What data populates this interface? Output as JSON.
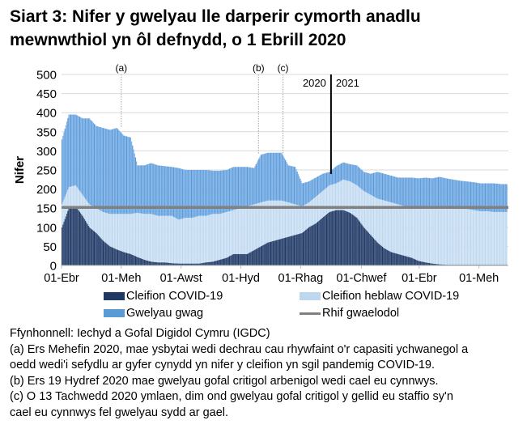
{
  "title": "Siart 3: Nifer y gwelyau lle darperir cymorth anadlu mewnwthiol yn ôl defnydd, o 1 Ebrill 2020",
  "chart_data": {
    "type": "bar",
    "stacked": true,
    "ylabel": "Nifer",
    "ylim": [
      0,
      500
    ],
    "yticks": [
      0,
      50,
      100,
      150,
      200,
      250,
      300,
      350,
      400,
      450,
      500
    ],
    "grid": true,
    "legend_placement": "bottom",
    "x_start": "2020-04-01",
    "x_step_days": 7,
    "xticks": [
      {
        "date": "2020-04-01",
        "label": "01-Ebr"
      },
      {
        "date": "2020-06-01",
        "label": "01-Meh"
      },
      {
        "date": "2020-08-01",
        "label": "01-Awst"
      },
      {
        "date": "2020-10-01",
        "label": "01-Hyd"
      },
      {
        "date": "2020-12-01",
        "label": "01-Rhag"
      },
      {
        "date": "2021-02-01",
        "label": "01-Chwef"
      },
      {
        "date": "2021-04-01",
        "label": "01-Ebr"
      },
      {
        "date": "2021-06-01",
        "label": "01-Meh"
      }
    ],
    "series": [
      {
        "name": "Cleifion COVID-19",
        "color": "#1f3864",
        "values": [
          100,
          150,
          155,
          130,
          100,
          85,
          65,
          50,
          42,
          35,
          30,
          22,
          15,
          10,
          8,
          8,
          6,
          5,
          5,
          5,
          5,
          8,
          10,
          15,
          20,
          30,
          30,
          30,
          40,
          50,
          60,
          65,
          70,
          75,
          80,
          85,
          100,
          110,
          125,
          140,
          145,
          145,
          138,
          125,
          100,
          80,
          60,
          45,
          35,
          30,
          25,
          20,
          12,
          8,
          5,
          3,
          2,
          2,
          2,
          2,
          2,
          2,
          2,
          2,
          2
        ]
      },
      {
        "name": "Cleifion heblaw COVID-19",
        "color": "#bdd7ee",
        "values": [
          60,
          55,
          55,
          55,
          60,
          65,
          75,
          85,
          93,
          100,
          105,
          116,
          120,
          125,
          122,
          122,
          124,
          115,
          120,
          120,
          125,
          122,
          125,
          120,
          120,
          115,
          120,
          125,
          120,
          115,
          110,
          105,
          100,
          90,
          80,
          70,
          65,
          70,
          70,
          70,
          70,
          80,
          82,
          85,
          95,
          105,
          115,
          125,
          130,
          130,
          130,
          130,
          138,
          142,
          145,
          147,
          148,
          146,
          146,
          146,
          143,
          140,
          140,
          138,
          138
        ]
      },
      {
        "name": "Gwelyau gwag",
        "color": "#5b9bd5",
        "values": [
          170,
          190,
          185,
          200,
          225,
          215,
          220,
          220,
          225,
          205,
          200,
          124,
          127,
          133,
          132,
          130,
          128,
          135,
          125,
          125,
          120,
          120,
          113,
          113,
          110,
          113,
          108,
          103,
          95,
          125,
          125,
          125,
          125,
          97,
          98,
          60,
          55,
          50,
          45,
          35,
          45,
          45,
          45,
          52,
          50,
          55,
          70,
          70,
          70,
          70,
          75,
          80,
          78,
          80,
          78,
          82,
          78,
          77,
          74,
          72,
          73,
          73,
          73,
          75,
          73
        ]
      },
      {
        "name": "Rhif gwaelodol",
        "color": "#808080",
        "type": "line",
        "value": 152
      }
    ],
    "annotations": [
      {
        "date": "2020-06-01",
        "label": "(a)"
      },
      {
        "date": "2020-10-19",
        "label": "(b)"
      },
      {
        "date": "2020-11-13",
        "label": "(c)"
      }
    ],
    "year_divider": {
      "date": "2021-01-01",
      "left_label": "2020",
      "right_label": "2021"
    }
  },
  "legend": [
    {
      "label": "Cleifion COVID-19",
      "color": "#1f3864",
      "kind": "box"
    },
    {
      "label": "Cleifion heblaw COVID-19",
      "color": "#bdd7ee",
      "kind": "box"
    },
    {
      "label": "Gwelyau gwag",
      "color": "#5b9bd5",
      "kind": "box"
    },
    {
      "label": "Rhif gwaelodol",
      "color": "#808080",
      "kind": "line"
    }
  ],
  "notes": {
    "source": "Ffynhonnell: Iechyd a Gofal Digidol Cymru (IGDC)",
    "a_line1": "(a) Ers Mehefin 2020, mae ysbytai wedi dechrau cau rhywfaint o'r capasiti ychwanegol a",
    "a_line2": "oedd wedi'i sefydlu ar gyfer cynydd yn nifer y cleifion yn sgil pandemig COVID-19.",
    "b": "(b) Ers 19 Hydref 2020 mae gwelyau gofal critigol arbenigol wedi cael eu cynnwys.",
    "c_line1": "(c) O 13 Tachwedd 2020 ymlaen, dim ond gwelyau gofal critigol y gellid eu staffio sy'n",
    "c_line2": "cael eu cynnwys fel gwelyau sydd ar gael."
  }
}
